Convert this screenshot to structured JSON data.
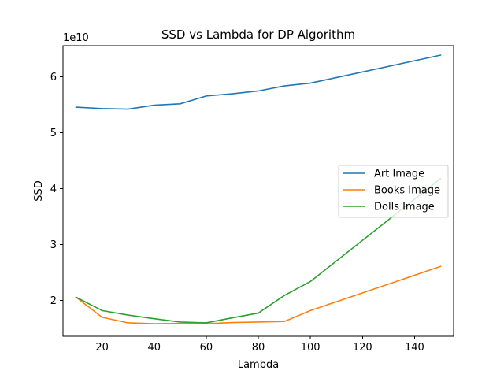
{
  "chart_data": {
    "type": "line",
    "title": "SSD vs Lambda for DP Algorithm",
    "xlabel": "Lambda",
    "ylabel": "SSD",
    "y_scale_label": "1e10",
    "xlim": [
      5,
      155
    ],
    "ylim": [
      1.36,
      6.56
    ],
    "x_ticks": [
      20,
      40,
      60,
      80,
      100,
      120,
      140
    ],
    "y_ticks": [
      2,
      3,
      4,
      5,
      6
    ],
    "grid": false,
    "legend_position": "center-right",
    "x": [
      10,
      20,
      30,
      40,
      50,
      60,
      70,
      80,
      90,
      100,
      150
    ],
    "series": [
      {
        "name": "Art Image",
        "color": "#1f77b4",
        "values": [
          5.46,
          5.435,
          5.425,
          5.495,
          5.52,
          5.66,
          5.7,
          5.75,
          5.84,
          5.89,
          6.39
        ]
      },
      {
        "name": "Books Image",
        "color": "#ff7f0e",
        "values": [
          2.06,
          1.7,
          1.6,
          1.585,
          1.59,
          1.585,
          1.605,
          1.615,
          1.625,
          1.82,
          2.61
        ]
      },
      {
        "name": "Dolls Image",
        "color": "#2ca02c",
        "values": [
          2.06,
          1.82,
          1.74,
          1.675,
          1.615,
          1.6,
          1.69,
          1.775,
          2.09,
          2.34,
          4.18
        ]
      }
    ]
  }
}
